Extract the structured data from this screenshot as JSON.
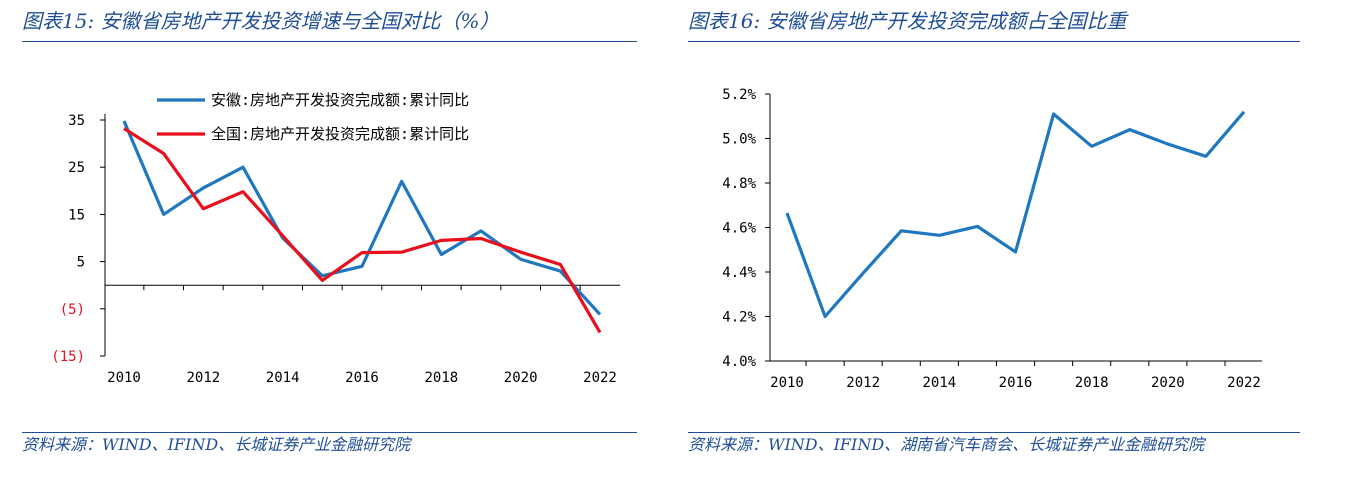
{
  "left_title": "图表15:  安徽省房地产开发投资增速与全国对比（%）",
  "right_title": "图表16:  安徽省房地产开发投资完成额占全国比重",
  "left_source": "资料来源：WIND、IFIND、长城证券产业金融研究院",
  "right_source": "资料来源：WIND、IFIND、湖南省汽车商会、长城证券产业金融研究院",
  "colors": {
    "blue": "#1f77c0",
    "red": "#e8101c",
    "title": "#1f4e97"
  },
  "chart_data": [
    {
      "type": "line",
      "title": "",
      "xlabel": "",
      "ylabel": "",
      "x": [
        2010,
        2011,
        2012,
        2013,
        2014,
        2015,
        2016,
        2017,
        2018,
        2019,
        2020,
        2021,
        2022
      ],
      "x_tick_labels": [
        "2010",
        "2012",
        "2014",
        "2016",
        "2018",
        "2020",
        "2022"
      ],
      "y_tick_labels": [
        "35",
        "25",
        "15",
        "5",
        "(5)",
        "(15)"
      ],
      "y_tick_values": [
        35,
        25,
        15,
        5,
        -5,
        -15
      ],
      "ylim": [
        -15,
        35
      ],
      "grid": false,
      "legend_position": "top",
      "series": [
        {
          "name": "安徽:房地产开发投资完成额:累计同比",
          "color": "#1f77c0",
          "values": [
            34.8,
            15.0,
            20.6,
            25.0,
            10.0,
            2.0,
            4.0,
            22.0,
            6.5,
            11.5,
            5.5,
            3.0,
            -6.2
          ]
        },
        {
          "name": "全国:房地产开发投资完成额:累计同比",
          "color": "#e8101c",
          "values": [
            33.2,
            27.9,
            16.2,
            19.8,
            10.5,
            1.0,
            6.9,
            7.0,
            9.5,
            9.9,
            7.0,
            4.4,
            -10.0
          ]
        }
      ]
    },
    {
      "type": "line",
      "title": "",
      "xlabel": "",
      "ylabel": "",
      "x": [
        2010,
        2011,
        2012,
        2013,
        2014,
        2015,
        2016,
        2017,
        2018,
        2019,
        2020,
        2021,
        2022
      ],
      "x_tick_labels": [
        "2010",
        "2012",
        "2014",
        "2016",
        "2018",
        "2020",
        "2022"
      ],
      "y_tick_labels": [
        "5.2%",
        "5.0%",
        "4.8%",
        "4.6%",
        "4.4%",
        "4.2%",
        "4.0%"
      ],
      "y_tick_values": [
        5.2,
        5.0,
        4.8,
        4.6,
        4.4,
        4.2,
        4.0
      ],
      "ylim": [
        4.0,
        5.2
      ],
      "grid": false,
      "series": [
        {
          "color": "#1f77c0",
          "values": [
            4.665,
            4.2,
            4.395,
            4.585,
            4.565,
            4.605,
            4.49,
            5.11,
            4.965,
            5.04,
            4.975,
            4.92,
            5.12
          ]
        }
      ]
    }
  ]
}
